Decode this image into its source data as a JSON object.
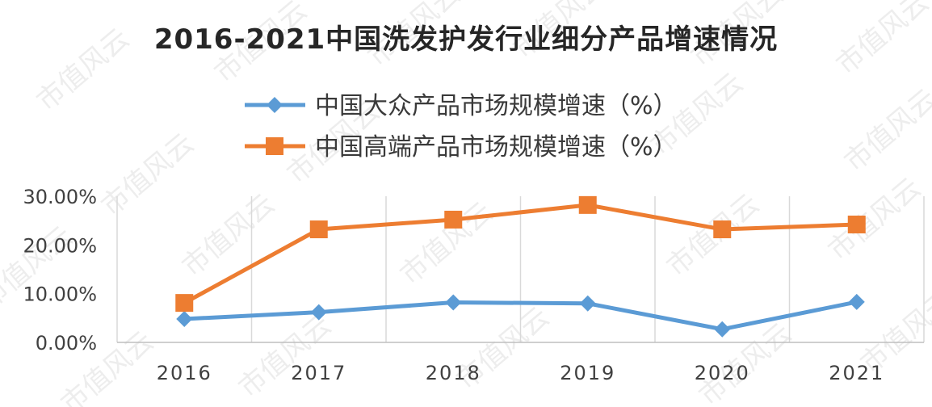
{
  "watermark": "市值风云",
  "chart_data": {
    "type": "line",
    "title": "2016-2021中国洗发护发行业细分产品增速情况",
    "categories": [
      "2016",
      "2017",
      "2018",
      "2019",
      "2020",
      "2021"
    ],
    "series": [
      {
        "name": "中国大众产品市场规模增速（%）",
        "values": [
          4.8,
          6.2,
          8.2,
          8.0,
          2.7,
          8.3
        ],
        "color": "#5b9bd5",
        "marker": "diamond"
      },
      {
        "name": "中国高端产品市场规模增速（%）",
        "values": [
          8.1,
          23.2,
          25.2,
          28.2,
          23.2,
          24.2
        ],
        "color": "#ed7d31",
        "marker": "square"
      }
    ],
    "y_ticks": [
      "0.00%",
      "10.00%",
      "20.00%",
      "30.00%"
    ],
    "ylim": [
      0,
      30
    ],
    "xlabel": "",
    "ylabel": "",
    "grid": "vertical",
    "legend": "top-center"
  }
}
